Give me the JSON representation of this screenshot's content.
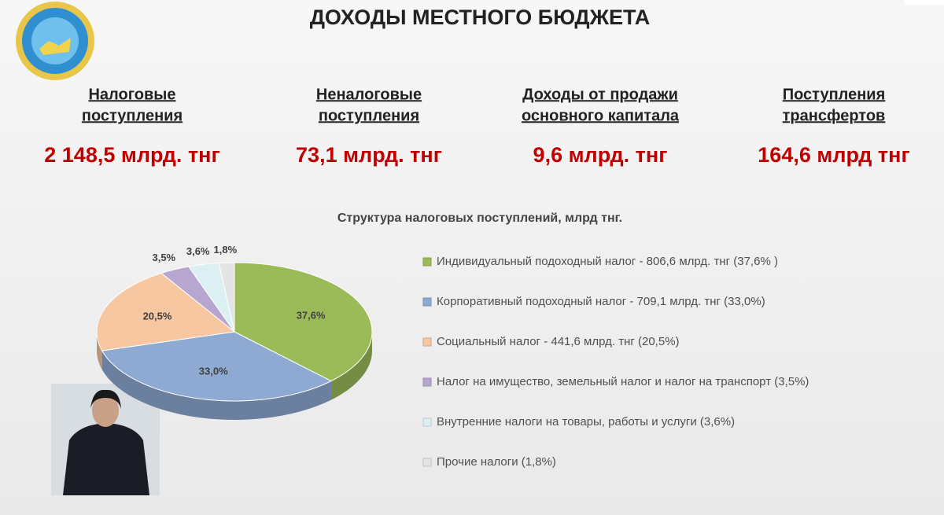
{
  "header": {
    "title": "ДОХОДЫ МЕСТНОГО БЮДЖЕТА"
  },
  "cards": [
    {
      "label": [
        "Налоговые",
        "поступления"
      ],
      "value": "2 148,5 млрд. тнг"
    },
    {
      "label": [
        "Неналоговые",
        "поступления"
      ],
      "value": "73,1 млрд. тнг"
    },
    {
      "label": [
        "Доходы от продажи",
        "основного капитала"
      ],
      "value": "9,6 млрд. тнг"
    },
    {
      "label": [
        "Поступления",
        "трансфертов"
      ],
      "value": "164,6 млрд тнг"
    }
  ],
  "chart_data": {
    "type": "pie",
    "title": "Структура налоговых поступлений, млрд тнг.",
    "categories": [
      "Индивидуальный подоходный налог - 806,6 млрд. тнг (37,6% )",
      "Корпоративный подоходный налог - 709,1 млрд. тнг (33,0%)",
      "Социальный налог - 441,6 млрд. тнг (20,5%)",
      "Налог на имущество, земельный налог и налог на транспорт (3,5%)",
      "Внутренние налоги на товары, работы и услуги (3,6%)",
      "Прочие налоги (1,8%)"
    ],
    "values": [
      37.6,
      33.0,
      20.5,
      3.5,
      3.6,
      1.8
    ],
    "value_labels": [
      "37,6%",
      "33,0%",
      "20,5%",
      "3,5%",
      "3,6%",
      "1,8%"
    ],
    "colors": [
      "#9bbb59",
      "#8eaad2",
      "#f6c7a0",
      "#b7a6cf",
      "#dcf0f4",
      "#e4e4e4"
    ]
  }
}
